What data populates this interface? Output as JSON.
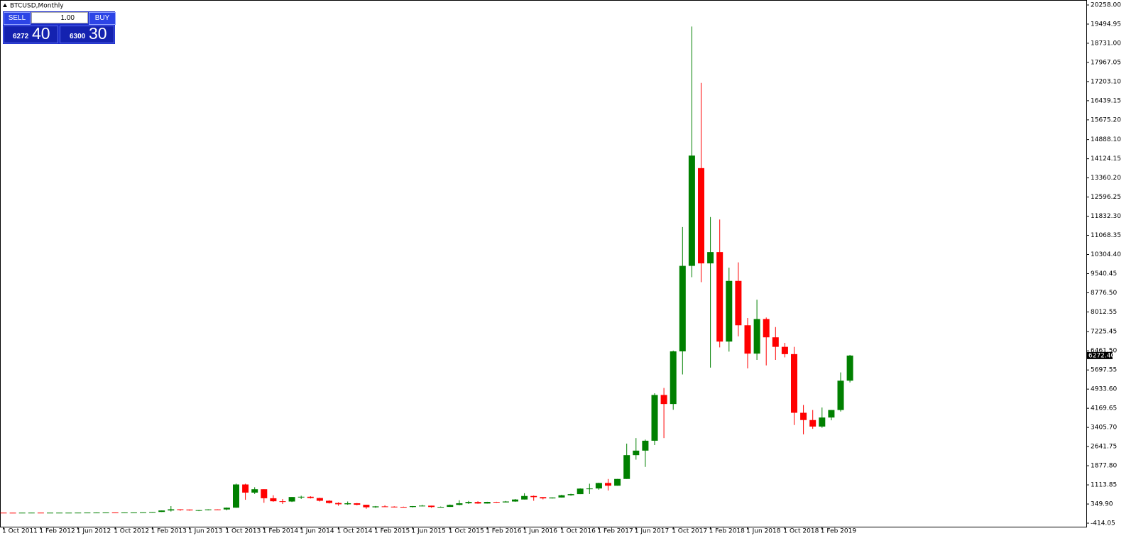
{
  "chart_data": {
    "type": "candlestick",
    "title": "BTCUSD,Monthly",
    "up_color": "#008000",
    "down_color": "#ff0000",
    "ylim": [
      -555,
      20400
    ],
    "yticks": [
      {
        "value": 20258,
        "label": "20258.00"
      },
      19494.95,
      {
        "value": 18731,
        "label": "18731.00"
      },
      17967.05,
      {
        "value": 17203.1,
        "label": "17203.10"
      },
      16439.15,
      {
        "value": 15675.2,
        "label": "15675.20"
      },
      {
        "value": 14888.1,
        "label": "14888.10"
      },
      14124.15,
      {
        "value": 13360.2,
        "label": "13360.20"
      },
      12596.25,
      {
        "value": 11832.3,
        "label": "11832.30"
      },
      11068.35,
      {
        "value": 10304.4,
        "label": "10304.40"
      },
      9540.45,
      {
        "value": 8776.5,
        "label": "8776.50"
      },
      8012.55,
      7225.45,
      {
        "value": 6461.5,
        "label": "6461.50"
      },
      5697.55,
      {
        "value": 4933.6,
        "label": "4933.60"
      },
      4169.65,
      {
        "value": 3405.7,
        "label": "3405.70"
      },
      2641.75,
      {
        "value": 1877.8,
        "label": "1877.80"
      },
      1113.85,
      {
        "value": 349.9,
        "label": "349.90"
      },
      -414.05
    ],
    "last_price": {
      "value": 6272.4,
      "label": "6272.40"
    },
    "categories": [
      "1 Oct 2011",
      null,
      null,
      null,
      "1 Feb 2012",
      null,
      null,
      null,
      "1 Jun 2012",
      null,
      null,
      null,
      "1 Oct 2012",
      null,
      null,
      null,
      "1 Feb 2013",
      null,
      null,
      null,
      "1 Jun 2013",
      null,
      null,
      null,
      "1 Oct 2013",
      null,
      null,
      null,
      "1 Feb 2014",
      null,
      null,
      null,
      "1 Jun 2014",
      null,
      null,
      null,
      "1 Oct 2014",
      null,
      null,
      null,
      "1 Feb 2015",
      null,
      null,
      null,
      "1 Jun 2015",
      null,
      null,
      null,
      "1 Oct 2015",
      null,
      null,
      null,
      "1 Feb 2016",
      null,
      null,
      null,
      "1 Jun 2016",
      null,
      null,
      null,
      "1 Oct 2016",
      null,
      null,
      null,
      "1 Feb 2017",
      null,
      null,
      null,
      "1 Jun 2017",
      null,
      null,
      null,
      "1 Oct 2017",
      null,
      null,
      null,
      "1 Feb 2018",
      null,
      null,
      null,
      "1 Jun 2018",
      null,
      null,
      null,
      "1 Oct 2018",
      null,
      null,
      null,
      "1 Feb 2019",
      null,
      null,
      null
    ],
    "ohlc": [
      [
        5,
        5,
        2,
        3.2
      ],
      [
        3.2,
        3.9,
        2,
        3
      ],
      [
        3,
        4.8,
        2.8,
        4.7
      ],
      [
        4.7,
        7.2,
        4.7,
        5.5
      ],
      [
        5.5,
        6.1,
        4.3,
        4.9
      ],
      [
        4.9,
        5.4,
        4.6,
        4.9
      ],
      [
        4.9,
        5.2,
        4.7,
        5
      ],
      [
        5,
        5.2,
        4.9,
        5.1
      ],
      [
        5.1,
        6.8,
        5.1,
        6.7
      ],
      [
        6.7,
        9.5,
        6.5,
        9.3
      ],
      [
        9.3,
        16,
        7,
        10
      ],
      [
        10,
        12.5,
        10,
        12.4
      ],
      [
        12.4,
        12.8,
        9.8,
        11.2
      ],
      [
        11.2,
        12.9,
        10.5,
        12.5
      ],
      [
        12.5,
        13.7,
        12.5,
        13.5
      ],
      [
        13.5,
        20.4,
        13.3,
        20.4
      ],
      [
        20.4,
        33.4,
        19.6,
        33.4
      ],
      [
        33.4,
        95,
        33,
        93
      ],
      [
        93,
        266,
        50,
        139
      ],
      [
        139,
        140,
        80,
        129
      ],
      [
        129,
        130,
        85,
        97
      ],
      [
        97,
        111,
        65,
        106
      ],
      [
        106,
        140,
        97,
        135
      ],
      [
        135,
        140,
        118,
        133
      ],
      [
        133,
        212,
        100,
        204
      ],
      [
        204,
        1165,
        200,
        1130
      ],
      [
        1130,
        1160,
        520,
        805
      ],
      [
        805,
        1020,
        750,
        940
      ],
      [
        940,
        940,
        400,
        580
      ],
      [
        580,
        700,
        440,
        460
      ],
      [
        460,
        550,
        350,
        450
      ],
      [
        450,
        630,
        430,
        630
      ],
      [
        630,
        680,
        550,
        640
      ],
      [
        640,
        660,
        570,
        590
      ],
      [
        590,
        600,
        450,
        480
      ],
      [
        480,
        500,
        370,
        390
      ],
      [
        390,
        420,
        280,
        340
      ],
      [
        340,
        450,
        320,
        380
      ],
      [
        380,
        390,
        300,
        320
      ],
      [
        320,
        320,
        160,
        220
      ],
      [
        220,
        270,
        200,
        255
      ],
      [
        255,
        300,
        240,
        245
      ],
      [
        245,
        260,
        215,
        235
      ],
      [
        235,
        245,
        225,
        230
      ],
      [
        230,
        270,
        215,
        265
      ],
      [
        265,
        315,
        255,
        285
      ],
      [
        285,
        285,
        200,
        230
      ],
      [
        230,
        250,
        225,
        235
      ],
      [
        235,
        330,
        235,
        315
      ],
      [
        315,
        500,
        300,
        380
      ],
      [
        380,
        470,
        350,
        430
      ],
      [
        430,
        460,
        360,
        370
      ],
      [
        370,
        440,
        365,
        435
      ],
      [
        435,
        440,
        400,
        415
      ],
      [
        415,
        470,
        415,
        450
      ],
      [
        450,
        550,
        440,
        530
      ],
      [
        530,
        780,
        530,
        670
      ],
      [
        670,
        690,
        480,
        625
      ],
      [
        625,
        625,
        535,
        575
      ],
      [
        575,
        615,
        570,
        610
      ],
      [
        610,
        720,
        605,
        700
      ],
      [
        700,
        760,
        680,
        745
      ],
      [
        745,
        975,
        745,
        965
      ],
      [
        965,
        1160,
        750,
        970
      ],
      [
        970,
        1200,
        920,
        1190
      ],
      [
        1190,
        1350,
        890,
        1080
      ],
      [
        1080,
        1350,
        1080,
        1350
      ],
      [
        1350,
        2760,
        1350,
        2300
      ],
      [
        2300,
        2980,
        2120,
        2480
      ],
      [
        2480,
        2920,
        1830,
        2875
      ],
      [
        2875,
        4770,
        2700,
        4700
      ],
      [
        4700,
        4980,
        2980,
        4340
      ],
      [
        4340,
        6470,
        4110,
        6440
      ],
      [
        6440,
        11400,
        5520,
        9850
      ],
      [
        9850,
        19400,
        9400,
        14250
      ],
      [
        13750,
        17150,
        9200,
        9950
      ],
      [
        9950,
        11800,
        5790,
        10400
      ],
      [
        10400,
        11700,
        6600,
        6830
      ],
      [
        6830,
        9780,
        6430,
        9250
      ],
      [
        9250,
        9990,
        7040,
        7480
      ],
      [
        7480,
        7770,
        5760,
        6350
      ],
      [
        6350,
        8500,
        6100,
        7730
      ],
      [
        7730,
        7790,
        5880,
        7000
      ],
      [
        7000,
        7410,
        6100,
        6620
      ],
      [
        6620,
        6780,
        6200,
        6330
      ],
      [
        6330,
        6620,
        3500,
        3990
      ],
      [
        3990,
        4300,
        3130,
        3700
      ],
      [
        3700,
        4100,
        3350,
        3440
      ],
      [
        3440,
        4200,
        3390,
        3800
      ],
      [
        3800,
        4100,
        3690,
        4100
      ],
      [
        4100,
        5600,
        4040,
        5270
      ],
      [
        5270,
        6300,
        5200,
        6272.4
      ]
    ]
  },
  "trade_panel": {
    "sell": "SELL",
    "lot": "1.00",
    "buy": "BUY",
    "bid_big": "6272",
    "bid_small": "40",
    "ask_big": "6300",
    "ask_small": "30"
  }
}
